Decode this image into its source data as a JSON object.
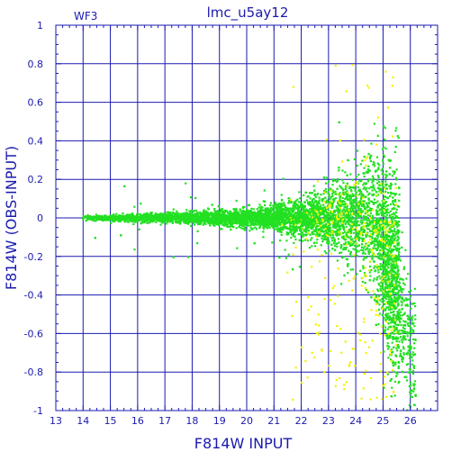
{
  "chart_data": {
    "type": "scatter",
    "title": "lmc_u5ay12",
    "corner_label": "WF3",
    "xlabel": "F814W INPUT",
    "ylabel": "F814W (OBS-INPUT)",
    "xlim": [
      13,
      27
    ],
    "ylim": [
      -1,
      1
    ],
    "x_ticks": [
      13,
      14,
      15,
      16,
      17,
      18,
      19,
      20,
      21,
      22,
      23,
      24,
      25,
      26
    ],
    "y_ticks": [
      -1,
      -0.8,
      -0.6,
      -0.4,
      -0.2,
      0,
      0.2,
      0.4,
      0.6,
      0.8,
      1
    ],
    "y_tick_labels": [
      "-1",
      "-0.8",
      "-0.6",
      "-0.4",
      "-0.2",
      "0",
      "0.2",
      "0.4",
      "0.6",
      "0.8",
      "1"
    ],
    "grid": true,
    "colors": {
      "axis": "#1a1ab0",
      "grid": "#1a1ab0",
      "series_green": "#22e022",
      "series_yellow": "#f2f200"
    },
    "series": [
      {
        "color": "green",
        "description_points": [
          [
            14.0,
            0.01
          ],
          [
            14.2,
            0.0
          ],
          [
            14.5,
            0.0
          ],
          [
            15.0,
            0.0
          ],
          [
            15.5,
            0.0
          ],
          [
            16.0,
            0.0
          ],
          [
            16.5,
            0.0
          ],
          [
            17.0,
            0.0
          ],
          [
            17.5,
            0.0
          ],
          [
            18.0,
            0.0
          ],
          [
            19.0,
            0.0
          ],
          [
            20.0,
            0.0
          ],
          [
            21.0,
            0.0
          ],
          [
            22.0,
            0.0
          ],
          [
            23.0,
            0.0
          ],
          [
            24.0,
            0.02
          ],
          [
            24.5,
            0.05
          ],
          [
            25.0,
            -0.05
          ],
          [
            25.5,
            -0.2
          ],
          [
            26.0,
            -0.6
          ]
        ]
      },
      {
        "color": "yellow",
        "description_points": [
          [
            21.5,
            -0.55
          ],
          [
            22.3,
            -0.7
          ],
          [
            22.8,
            -0.85
          ],
          [
            23.5,
            -0.9
          ],
          [
            24.3,
            0.1
          ],
          [
            24.6,
            -0.75
          ],
          [
            25.0,
            -0.5
          ],
          [
            25.2,
            0.05
          ],
          [
            22.2,
            0.78
          ],
          [
            24.0,
            0.65
          ]
        ]
      }
    ]
  }
}
